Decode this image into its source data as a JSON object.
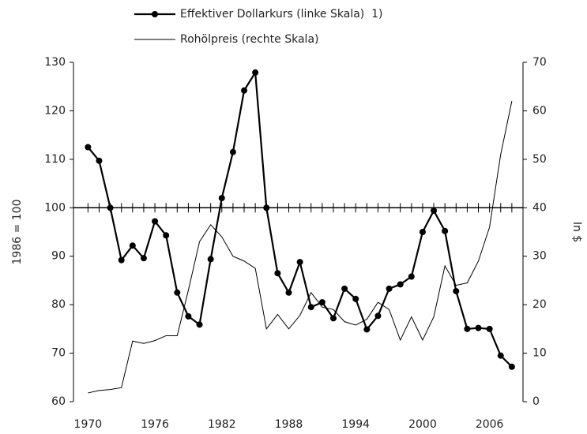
{
  "chart_data": {
    "type": "line",
    "x": [
      1970,
      1971,
      1972,
      1973,
      1974,
      1975,
      1976,
      1977,
      1978,
      1979,
      1980,
      1981,
      1982,
      1983,
      1984,
      1985,
      1986,
      1987,
      1988,
      1989,
      1990,
      1991,
      1992,
      1993,
      1994,
      1995,
      1996,
      1997,
      1998,
      1999,
      2000,
      2001,
      2002,
      2003,
      2004,
      2005,
      2006,
      2007,
      2008
    ],
    "series": [
      {
        "name": "Effektiver Dollarkurs (linke Skala)  1)",
        "color": "#000000",
        "marker": true,
        "values": [
          112.5,
          109.7,
          100,
          89.2,
          92.2,
          89.6,
          97.2,
          94.3,
          82.5,
          77.6,
          75.9,
          89.4,
          102,
          111.5,
          124.2,
          127.9,
          100,
          86.5,
          82.5,
          88.8,
          79.5,
          80.5,
          77.2,
          83.3,
          81.2,
          74.9,
          77.7,
          83.3,
          84.2,
          85.8,
          95,
          99.4,
          95.2,
          82.8,
          75,
          75.2,
          75,
          69.5,
          67.2
        ]
      },
      {
        "name": "Rohölpreis (rechte Skala)",
        "color": "#000000",
        "marker": false,
        "axis": "y2",
        "values": [
          1.8,
          2.3,
          2.5,
          2.9,
          12.5,
          12,
          12.6,
          13.6,
          13.6,
          23,
          33,
          36.5,
          34,
          30,
          29,
          27.5,
          15,
          18,
          15,
          17.8,
          22.5,
          19.5,
          19,
          16.5,
          15.8,
          17,
          20.5,
          19,
          12.7,
          17.5,
          12.7,
          17.5,
          28,
          24,
          24.5,
          29,
          36,
          51,
          62
        ]
      }
    ],
    "ylabel": "1986 = 100",
    "y2label": "In $",
    "xlim": [
      1968.7,
      2009
    ],
    "xticks": [
      1970,
      1976,
      1982,
      1988,
      1994,
      2000,
      2006
    ],
    "ylim": [
      60,
      130
    ],
    "yticks": [
      60,
      70,
      80,
      90,
      100,
      110,
      120,
      130
    ],
    "y2lim": [
      0,
      70
    ],
    "y2ticks": [
      0,
      10,
      20,
      30,
      40,
      50,
      60,
      70
    ],
    "x_axis_crossing": 100
  }
}
